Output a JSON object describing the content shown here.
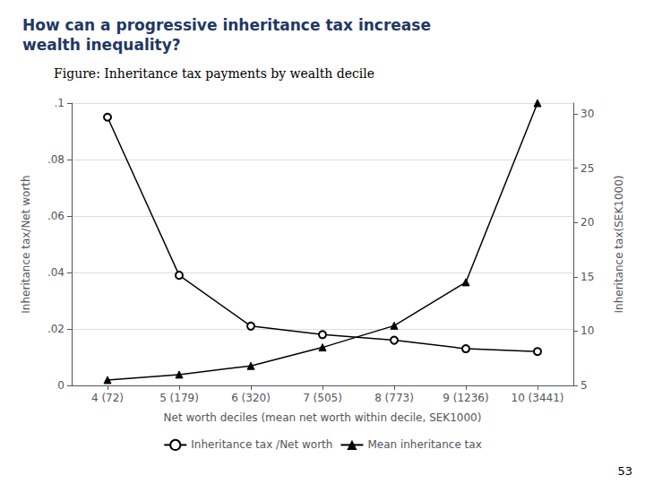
{
  "chart_data": {
    "type": "line",
    "title": "How can a progressive inheritance tax increase\nwealth inequality?",
    "subtitle": "Figure: Inheritance tax payments by wealth decile",
    "categories": [
      "4 (72)",
      "5 (179)",
      "6 (320)",
      "7 (505)",
      "8 (773)",
      "9 (1236)",
      "10 (3441)"
    ],
    "xlabel": "Net worth deciles (mean net worth within decile, SEK1000)",
    "ylabel": "Inheritance tax/Net worth",
    "y2label": "Inheritance tax(SEK1000)",
    "series": [
      {
        "name": "Inheritance tax /Net worth",
        "color": "#000000",
        "marker": "open_circle",
        "values": [
          0.095,
          0.039,
          0.021,
          0.018,
          0.016,
          0.013,
          0.012
        ]
      },
      {
        "name": "Mean inheritance tax",
        "color": "#000000",
        "marker": "triangle",
        "axis": "y2",
        "values": [
          5.5,
          6.0,
          6.8,
          8.5,
          10.5,
          14.5,
          31.0
        ]
      }
    ],
    "ylim": [
      0,
      0.1
    ],
    "yticks": [
      0,
      {
        "value": 0.02,
        "label": ".02"
      },
      {
        "value": 0.04,
        "label": ".04"
      },
      {
        "value": 0.06,
        "label": ".06"
      },
      {
        "value": 0.08,
        "label": ".08"
      },
      {
        "value": 0.1,
        "label": ".1"
      }
    ],
    "y2lim": [
      5,
      31
    ],
    "y2ticks": [
      5,
      10,
      15,
      20,
      25,
      30
    ],
    "grid": true,
    "legend": "bottom",
    "annotations": [
      "53"
    ]
  }
}
